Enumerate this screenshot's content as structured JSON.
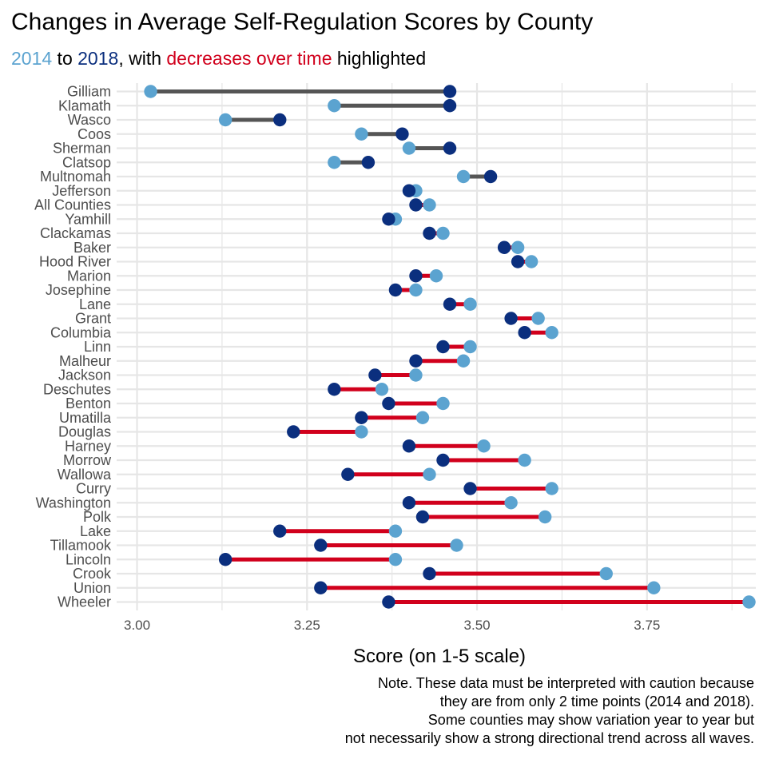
{
  "title": "Changes in Average Self-Regulation Scores by County",
  "subtitle": {
    "start_year": "2014",
    "word_to": " to ",
    "end_year": "2018",
    "word_with": ", with ",
    "highlight": "decreases over time",
    "word_end": " highlighted"
  },
  "colors": {
    "start_point": "#5ba3d0",
    "end_point": "#0b2f7e",
    "decrease_line": "#d1001c",
    "increase_line": "#555555",
    "grid": "#e6e6e6"
  },
  "note_lines": [
    "Note. These data must be interpreted with caution because",
    "they are from only 2 time points (2014 and 2018).",
    "Some counties may show variation year to year but",
    "not necessarily show a strong directional trend across all waves."
  ],
  "chart_data": {
    "type": "dumbbell",
    "xlabel": "Score (on 1-5 scale)",
    "ylabel": "",
    "xlim": [
      2.97,
      3.91
    ],
    "x_ticks": [
      3.0,
      3.25,
      3.5,
      3.75
    ],
    "x_tick_labels": [
      "3.00",
      "3.25",
      "3.50",
      "3.75"
    ],
    "grid": true,
    "legend": "none",
    "series": [
      {
        "name": "2014",
        "color_key": "start_point"
      },
      {
        "name": "2018",
        "color_key": "end_point"
      }
    ],
    "counties": [
      {
        "county": "Gilliam",
        "v2014": 3.02,
        "v2018": 3.46
      },
      {
        "county": "Klamath",
        "v2014": 3.29,
        "v2018": 3.46
      },
      {
        "county": "Wasco",
        "v2014": 3.13,
        "v2018": 3.21
      },
      {
        "county": "Coos",
        "v2014": 3.33,
        "v2018": 3.39
      },
      {
        "county": "Sherman",
        "v2014": 3.4,
        "v2018": 3.46
      },
      {
        "county": "Clatsop",
        "v2014": 3.29,
        "v2018": 3.34
      },
      {
        "county": "Multnomah",
        "v2014": 3.48,
        "v2018": 3.52
      },
      {
        "county": "Jefferson",
        "v2014": 3.41,
        "v2018": 3.4
      },
      {
        "county": "All Counties",
        "v2014": 3.43,
        "v2018": 3.41
      },
      {
        "county": "Yamhill",
        "v2014": 3.38,
        "v2018": 3.37
      },
      {
        "county": "Clackamas",
        "v2014": 3.45,
        "v2018": 3.43
      },
      {
        "county": "Baker",
        "v2014": 3.56,
        "v2018": 3.54
      },
      {
        "county": "Hood River",
        "v2014": 3.58,
        "v2018": 3.56
      },
      {
        "county": "Marion",
        "v2014": 3.44,
        "v2018": 3.41
      },
      {
        "county": "Josephine",
        "v2014": 3.41,
        "v2018": 3.38
      },
      {
        "county": "Lane",
        "v2014": 3.49,
        "v2018": 3.46
      },
      {
        "county": "Grant",
        "v2014": 3.59,
        "v2018": 3.55
      },
      {
        "county": "Columbia",
        "v2014": 3.61,
        "v2018": 3.57
      },
      {
        "county": "Linn",
        "v2014": 3.49,
        "v2018": 3.45
      },
      {
        "county": "Malheur",
        "v2014": 3.48,
        "v2018": 3.41
      },
      {
        "county": "Jackson",
        "v2014": 3.41,
        "v2018": 3.35
      },
      {
        "county": "Deschutes",
        "v2014": 3.36,
        "v2018": 3.29
      },
      {
        "county": "Benton",
        "v2014": 3.45,
        "v2018": 3.37
      },
      {
        "county": "Umatilla",
        "v2014": 3.42,
        "v2018": 3.33
      },
      {
        "county": "Douglas",
        "v2014": 3.33,
        "v2018": 3.23
      },
      {
        "county": "Harney",
        "v2014": 3.51,
        "v2018": 3.4
      },
      {
        "county": "Morrow",
        "v2014": 3.57,
        "v2018": 3.45
      },
      {
        "county": "Wallowa",
        "v2014": 3.43,
        "v2018": 3.31
      },
      {
        "county": "Curry",
        "v2014": 3.61,
        "v2018": 3.49
      },
      {
        "county": "Washington",
        "v2014": 3.55,
        "v2018": 3.4
      },
      {
        "county": "Polk",
        "v2014": 3.6,
        "v2018": 3.42
      },
      {
        "county": "Lake",
        "v2014": 3.38,
        "v2018": 3.21
      },
      {
        "county": "Tillamook",
        "v2014": 3.47,
        "v2018": 3.27
      },
      {
        "county": "Lincoln",
        "v2014": 3.38,
        "v2018": 3.13
      },
      {
        "county": "Crook",
        "v2014": 3.69,
        "v2018": 3.43
      },
      {
        "county": "Union",
        "v2014": 3.76,
        "v2018": 3.27
      },
      {
        "county": "Wheeler",
        "v2014": 3.9,
        "v2018": 3.37
      }
    ]
  }
}
